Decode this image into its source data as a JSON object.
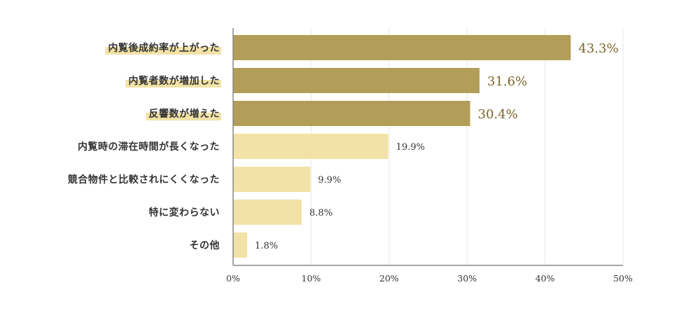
{
  "chart_data": {
    "type": "bar",
    "orientation": "horizontal",
    "categories": [
      "内覧後成約率が上がった",
      "内覧者数が増加した",
      "反響数が増えた",
      "内覧時の滞在時間が長くなった",
      "競合物件と比較されにくくなった",
      "特に変わらない",
      "その他"
    ],
    "values": [
      43.3,
      31.6,
      30.4,
      19.9,
      9.9,
      8.8,
      1.8
    ],
    "value_labels": [
      "43.3%",
      "31.6%",
      "30.4%",
      "19.9%",
      "9.9%",
      "8.8%",
      "1.8%"
    ],
    "xlim": [
      0,
      50
    ],
    "x_ticks": [
      0,
      10,
      20,
      30,
      40,
      50
    ],
    "x_tick_labels": [
      "0%",
      "10%",
      "20%",
      "30%",
      "40%",
      "50%"
    ],
    "highlight_top": 3,
    "grid": true,
    "title": "",
    "xlabel": "",
    "ylabel": ""
  },
  "colors": {
    "highlight_bar": "#b29e58",
    "normal_bar": "#f2e2a6",
    "label_highlight": "#f2e2a6",
    "highlight_value_text": "#7a6428",
    "normal_value_text": "#333333",
    "grid": "#e8e8e8",
    "axis": "#888888"
  }
}
